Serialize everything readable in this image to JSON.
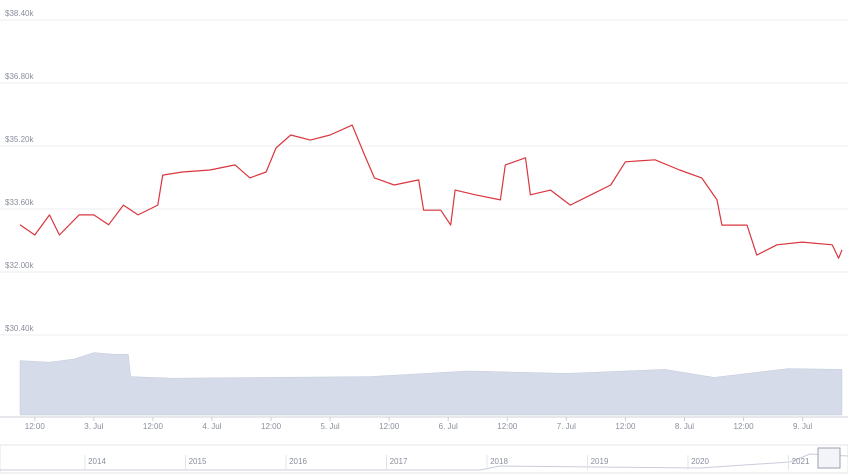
{
  "chart_data": {
    "type": "line",
    "x": [
      9,
      12,
      15,
      17,
      21,
      24,
      27,
      30,
      33,
      37,
      38,
      42,
      47.6,
      52.7,
      55.7,
      59,
      61,
      64,
      68,
      72,
      76.5,
      79,
      81,
      85,
      90,
      91,
      94.5,
      96.5,
      97.4,
      101.5,
      106.6,
      107.6,
      111.7,
      112.7,
      116.8,
      120.8,
      125,
      129,
      132,
      138,
      143,
      147.5,
      150.6,
      151.6,
      156.7,
      158.7,
      162.8,
      167.9,
      174,
      175.3,
      176
    ],
    "values": [
      33200,
      32940,
      33450,
      32940,
      33450,
      33450,
      33200,
      33700,
      33450,
      33700,
      34460,
      34540,
      34590,
      34720,
      34390,
      34540,
      35150,
      35480,
      35350,
      35480,
      35730,
      34970,
      34390,
      34210,
      34340,
      33570,
      33570,
      33190,
      34080,
      33960,
      33830,
      34720,
      34900,
      33960,
      34080,
      33700,
      33960,
      34210,
      34800,
      34850,
      34590,
      34390,
      33830,
      33190,
      33190,
      32430,
      32690,
      32760,
      32690,
      32350,
      32560
    ],
    "color": "#d9363e",
    "xlim": [
      9,
      176
    ],
    "xticks": [
      {
        "value": 12,
        "label": "12:00"
      },
      {
        "value": 24,
        "label": "3. Jul"
      },
      {
        "value": 36,
        "label": "12:00"
      },
      {
        "value": 48,
        "label": "4. Jul"
      },
      {
        "value": 60,
        "label": "12:00"
      },
      {
        "value": 72,
        "label": "5. Jul"
      },
      {
        "value": 84,
        "label": "12:00"
      },
      {
        "value": 96,
        "label": "6. Jul"
      },
      {
        "value": 108,
        "label": "12:00"
      },
      {
        "value": 120,
        "label": "7. Jul"
      },
      {
        "value": 132,
        "label": "12:00"
      },
      {
        "value": 144,
        "label": "8. Jul"
      },
      {
        "value": 156,
        "label": "12:00"
      },
      {
        "value": 168,
        "label": "9. Jul"
      }
    ],
    "ylim": [
      30400,
      38400
    ],
    "yticks": [
      {
        "value": 30400,
        "label": "$30.40k"
      },
      {
        "value": 32000,
        "label": "$32.00k"
      },
      {
        "value": 33600,
        "label": "$33.60k"
      },
      {
        "value": 35200,
        "label": "$35.20k"
      },
      {
        "value": 36800,
        "label": "$36.80k"
      },
      {
        "value": 38400,
        "label": "$38.40k"
      }
    ],
    "grid": true,
    "volume": {
      "x": [
        9,
        15,
        20,
        24,
        28,
        31,
        31.5,
        40,
        60,
        80,
        100,
        120,
        140,
        150,
        165,
        176
      ],
      "values": [
        68,
        66,
        70,
        78,
        76,
        76,
        48,
        46,
        47,
        48,
        55,
        52,
        57,
        47,
        58,
        57
      ],
      "color": "#d5dbe8",
      "y2lim": [
        0,
        100
      ]
    },
    "navigator_labels": [
      "2014",
      "2015",
      "2016",
      "2017",
      "2018",
      "2019",
      "2020",
      "2021"
    ]
  }
}
